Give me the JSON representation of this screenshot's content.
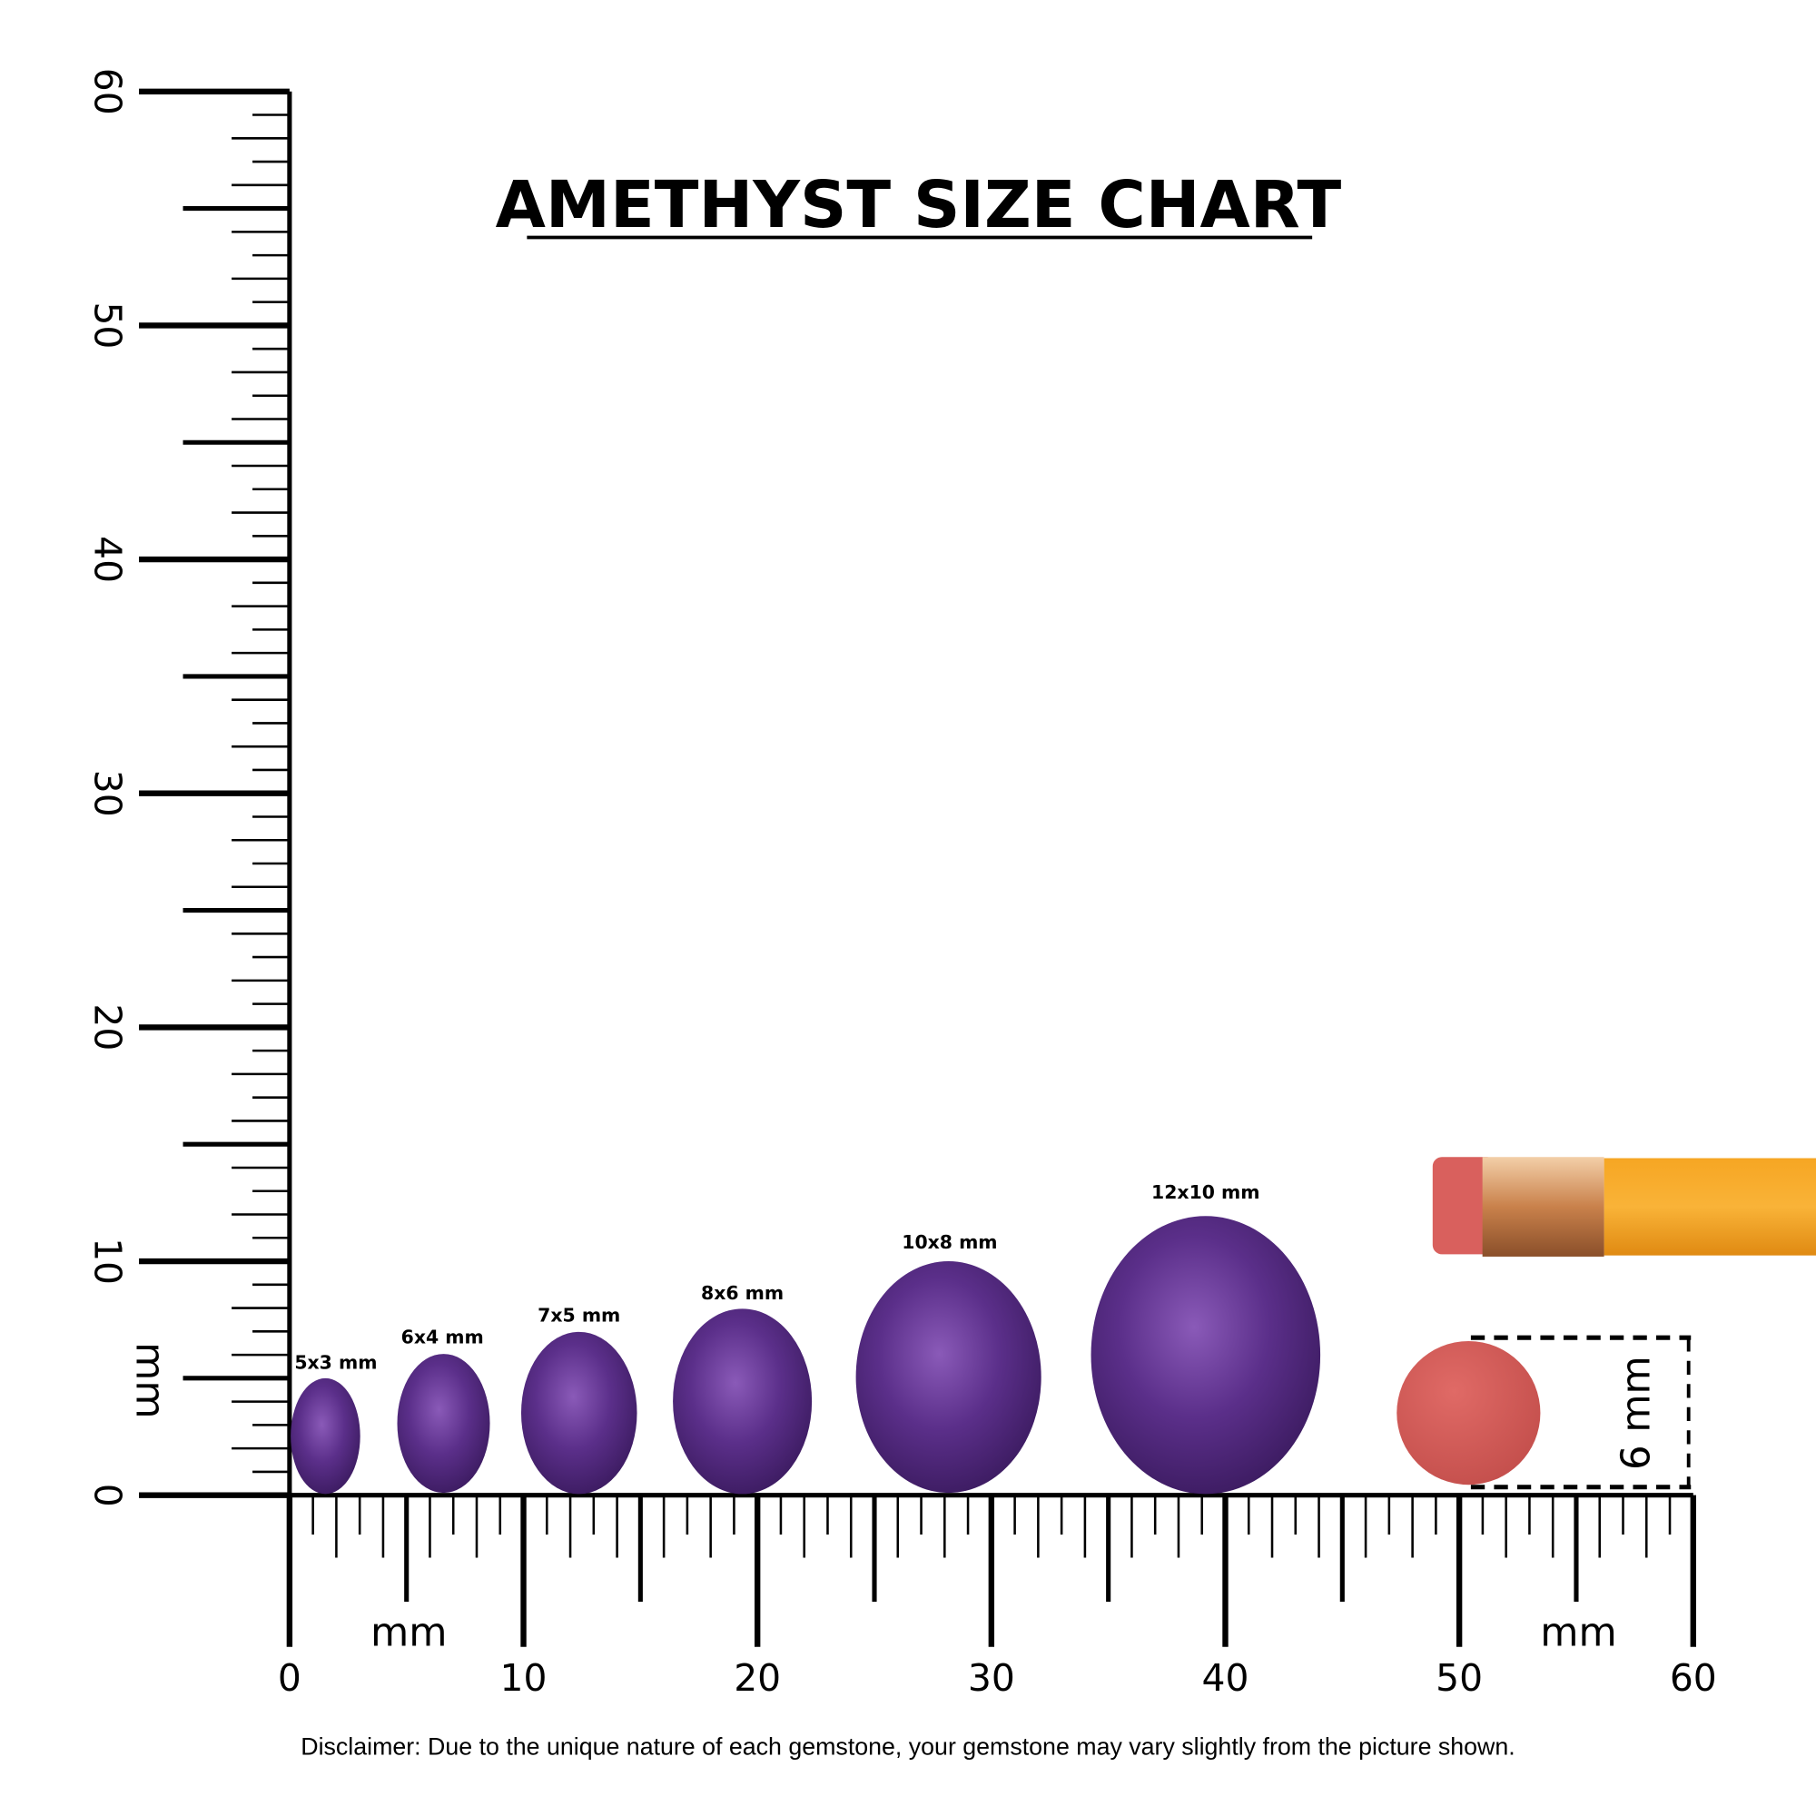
{
  "title": "AMETHYST SIZE CHART",
  "vertical_ruler": {
    "unit": "mm",
    "range": [
      0,
      60
    ],
    "ticks": [
      0,
      10,
      20,
      30,
      40,
      50,
      60
    ]
  },
  "horizontal_ruler": {
    "unit": "mm",
    "range": [
      0,
      60
    ],
    "ticks": [
      0,
      10,
      20,
      30,
      40,
      50,
      60
    ]
  },
  "gems": [
    {
      "label": "5x3 mm"
    },
    {
      "label": "6x4 mm"
    },
    {
      "label": "7x5 mm"
    },
    {
      "label": "8x6 mm"
    },
    {
      "label": "10x8 mm"
    },
    {
      "label": "12x10 mm"
    }
  ],
  "reference": {
    "label": "6 mm"
  },
  "disclaimer": "Disclaimer: Due to the unique nature of each gemstone, your gemstone may vary slightly from the picture shown."
}
